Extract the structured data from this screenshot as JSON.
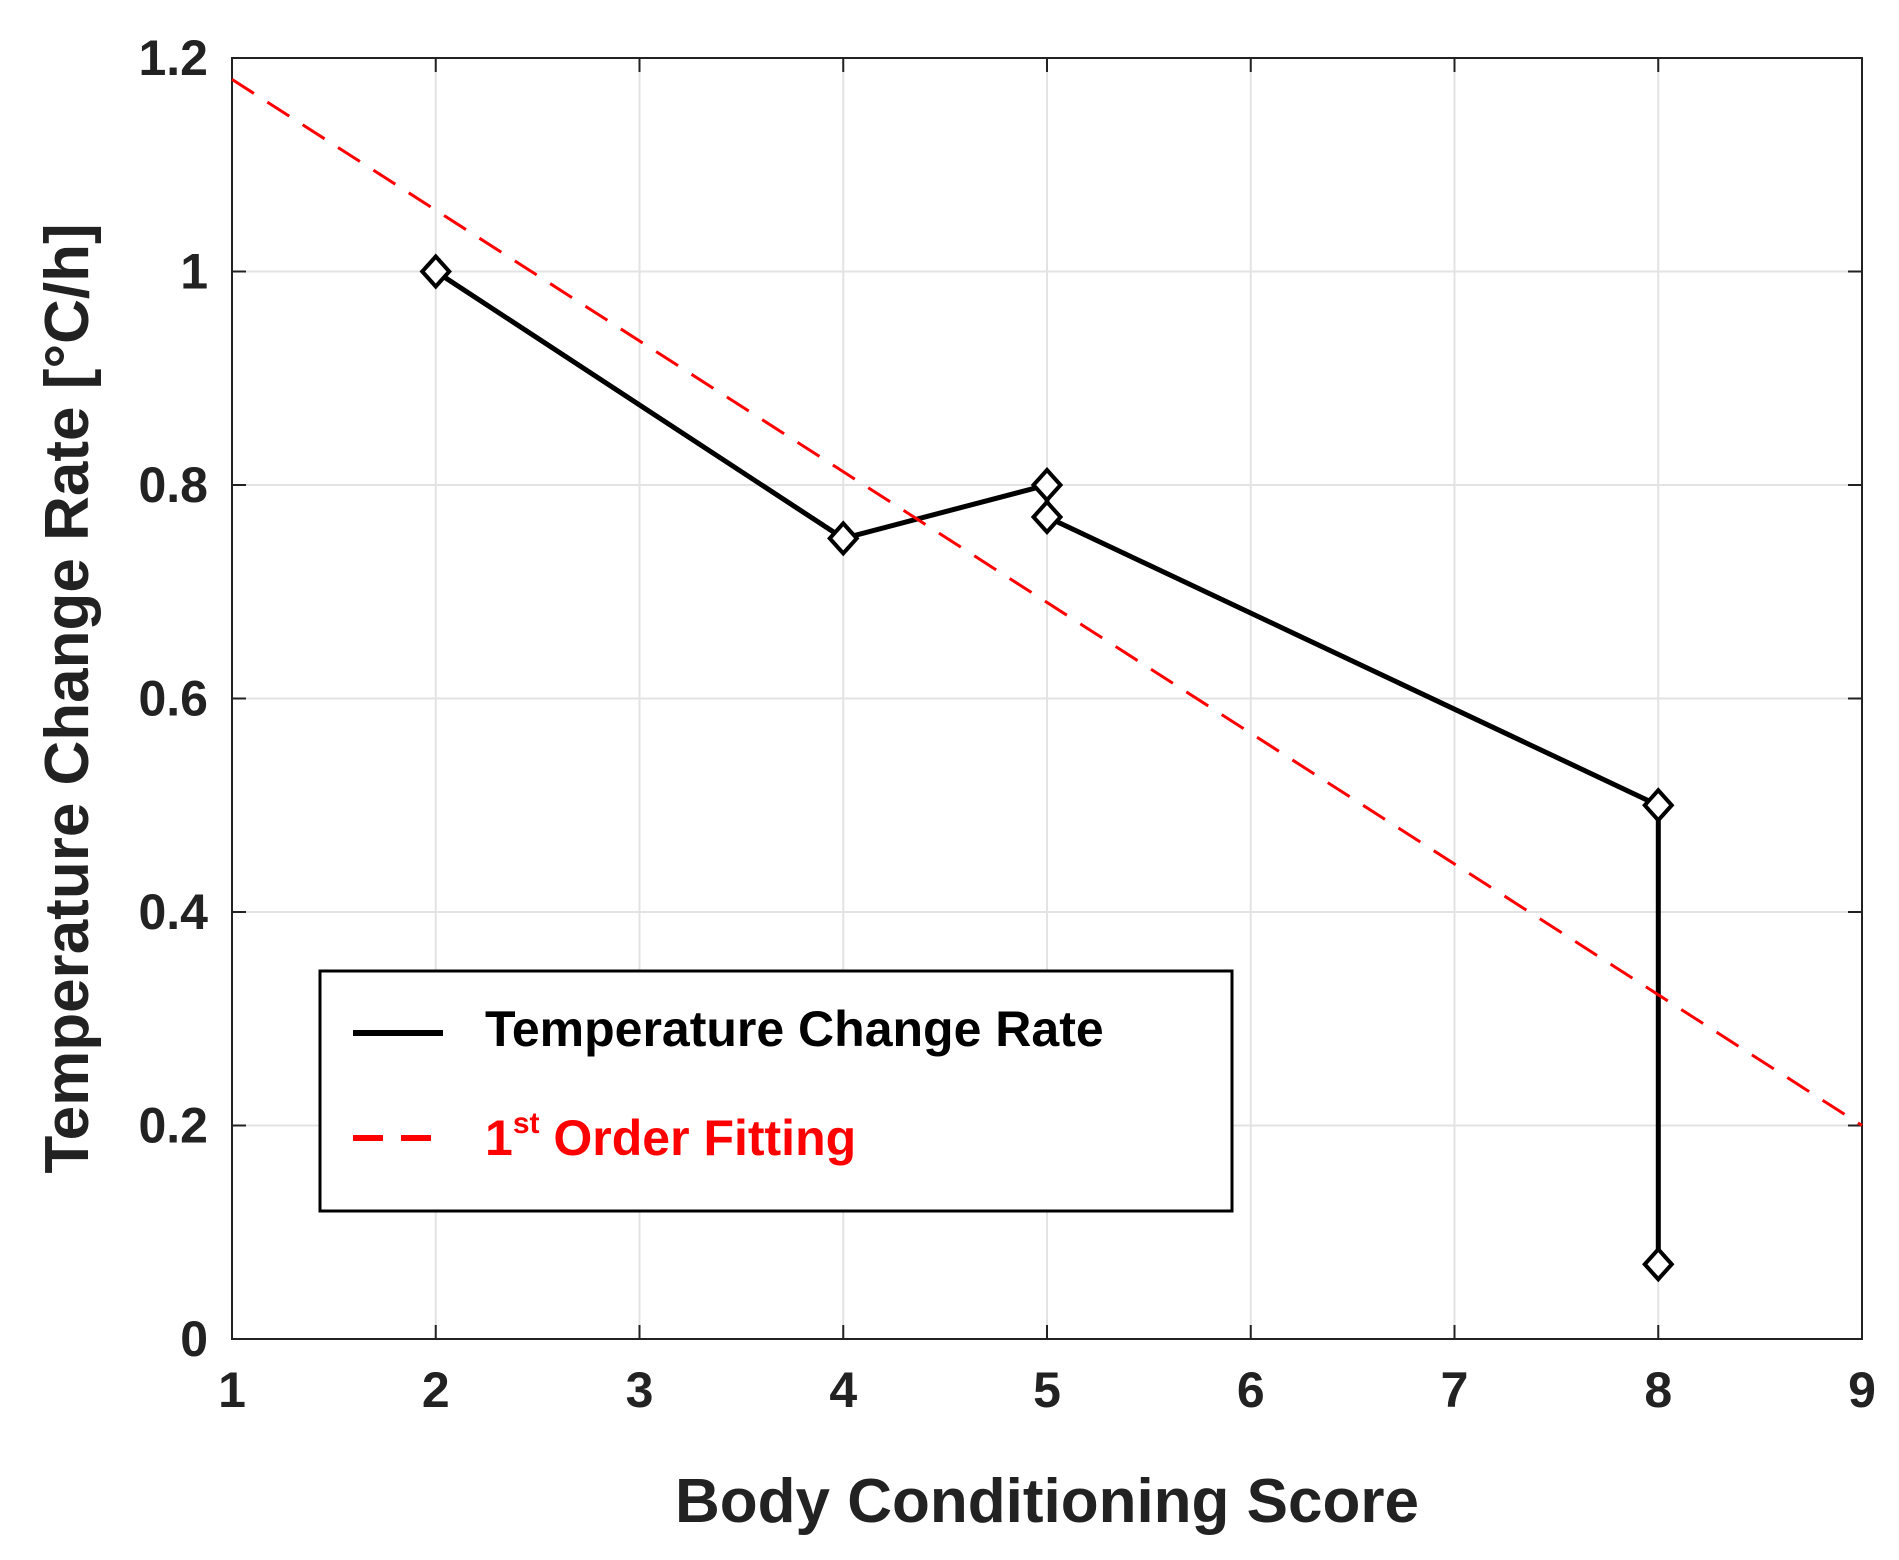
{
  "chart_data": {
    "type": "line",
    "title": "",
    "xlabel": "Body Conditioning Score",
    "ylabel": "Temperature Change Rate [°C/h]",
    "xlim": [
      1,
      9
    ],
    "ylim": [
      0,
      1.2
    ],
    "xticks": [
      1,
      2,
      3,
      4,
      5,
      6,
      7,
      8,
      9
    ],
    "xtick_labels": [
      "1",
      "2",
      "3",
      "4",
      "5",
      "6",
      "7",
      "8",
      "9"
    ],
    "yticks": [
      0,
      0.2,
      0.4,
      0.6,
      0.8,
      1.0,
      1.2
    ],
    "ytick_labels": [
      "0",
      "0.2",
      "0.4",
      "0.6",
      "0.8",
      "1",
      "1.2"
    ],
    "grid": true,
    "legend_position": "lower-left",
    "series": [
      {
        "name": "Temperature Change Rate",
        "style": "solid",
        "marker": "diamond",
        "color": "#000000",
        "x": [
          2,
          4,
          5,
          5,
          8,
          8
        ],
        "y": [
          1.0,
          0.75,
          0.8,
          0.77,
          0.5,
          0.07
        ]
      },
      {
        "name": "1st Order Fitting",
        "legend_main": "1",
        "legend_sup": "st",
        "legend_rest": " Order Fitting",
        "style": "dashed",
        "marker": "none",
        "color": "#ff0000",
        "x": [
          1,
          9
        ],
        "y": [
          1.18,
          0.2
        ]
      }
    ]
  }
}
